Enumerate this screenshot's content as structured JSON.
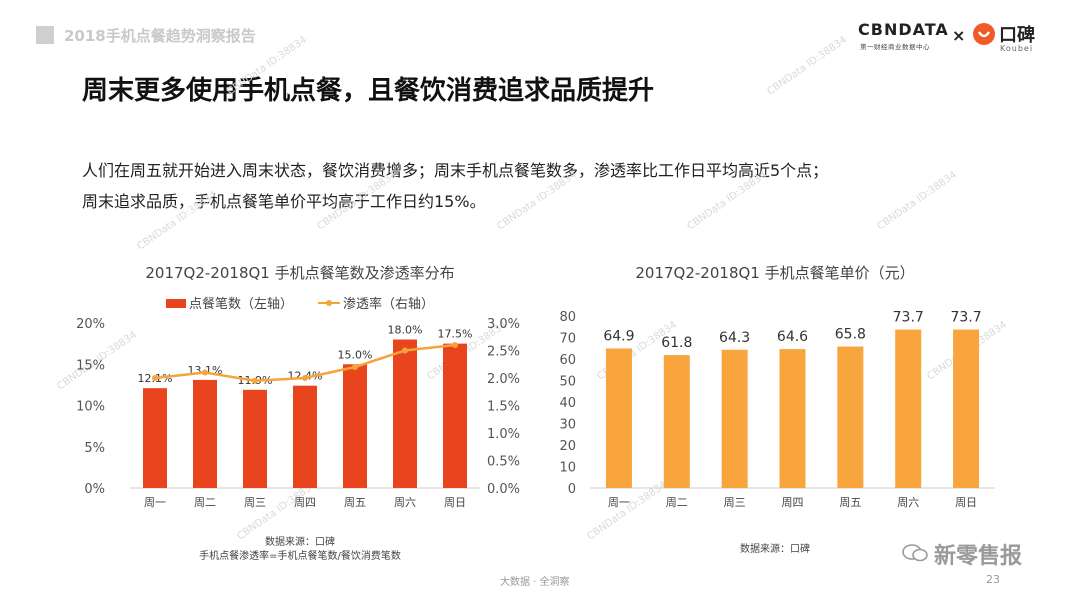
{
  "header": {
    "report_title": "2018手机点餐趋势洞察报告"
  },
  "logos": {
    "cbndata": "CBNDATA",
    "cbndata_sub": "第一财经商业数据中心",
    "times": "×",
    "koubei": "口碑",
    "koubei_sub": "Koubei"
  },
  "title": "周末更多使用手机点餐，且餐饮消费追求品质提升",
  "body": {
    "line1": "人们在周五就开始进入周末状态，餐饮消费增多；周末手机点餐笔数多，渗透率比工作日平均高近5个点；",
    "line2": "周末追求品质，手机点餐笔单价平均高于工作日约15%。"
  },
  "chart_data": [
    {
      "type": "bar",
      "title": "2017Q2-2018Q1 手机点餐笔数及渗透率分布",
      "categories": [
        "周一",
        "周二",
        "周三",
        "周四",
        "周五",
        "周六",
        "周日"
      ],
      "series": [
        {
          "name": "点餐笔数（左轴）",
          "kind": "bar",
          "axis": "left",
          "values": [
            12.1,
            13.1,
            11.9,
            12.4,
            15.0,
            18.0,
            17.5
          ],
          "labels": [
            "12.1%",
            "13.1%",
            "11.9%",
            "12.4%",
            "15.0%",
            "18.0%",
            "17.5%"
          ],
          "color": "#e8451e"
        },
        {
          "name": "渗透率（右轴）",
          "kind": "line",
          "axis": "right",
          "values": [
            2.0,
            2.1,
            1.95,
            2.0,
            2.2,
            2.5,
            2.6
          ],
          "color": "#f5a43a"
        }
      ],
      "y_left": {
        "ticks": [
          "0%",
          "5%",
          "10%",
          "15%",
          "20%"
        ],
        "values": [
          0,
          5,
          10,
          15,
          20
        ],
        "ylim": [
          0,
          20
        ]
      },
      "y_right": {
        "ticks": [
          "0.0%",
          "0.5%",
          "1.0%",
          "1.5%",
          "2.0%",
          "2.5%",
          "3.0%"
        ],
        "values": [
          0,
          0.5,
          1.0,
          1.5,
          2.0,
          2.5,
          3.0
        ],
        "ylim": [
          0,
          3.0
        ]
      },
      "legend_position": "top",
      "source": "数据来源：口碑",
      "note": "手机点餐渗透率=手机点餐笔数/餐饮消费笔数"
    },
    {
      "type": "bar",
      "title": "2017Q2-2018Q1 手机点餐笔单价（元）",
      "categories": [
        "周一",
        "周二",
        "周三",
        "周四",
        "周五",
        "周六",
        "周日"
      ],
      "series": [
        {
          "kind": "bar",
          "values": [
            64.9,
            61.8,
            64.3,
            64.6,
            65.8,
            73.7,
            73.7
          ],
          "labels": [
            "64.9",
            "61.8",
            "64.3",
            "64.6",
            "65.8",
            "73.7",
            "73.7"
          ],
          "color": "#f7a53c"
        }
      ],
      "y_left": {
        "ticks": [
          "0",
          "10",
          "20",
          "30",
          "40",
          "50",
          "60",
          "70",
          "80"
        ],
        "values": [
          0,
          10,
          20,
          30,
          40,
          50,
          60,
          70,
          80
        ],
        "ylim": [
          0,
          80
        ]
      },
      "source": "数据来源：口碑"
    }
  ],
  "footer": {
    "center": "大数据 · 全洞察",
    "page": "23",
    "wechat": "新零售报"
  },
  "watermark": "CBNData ID:38834"
}
